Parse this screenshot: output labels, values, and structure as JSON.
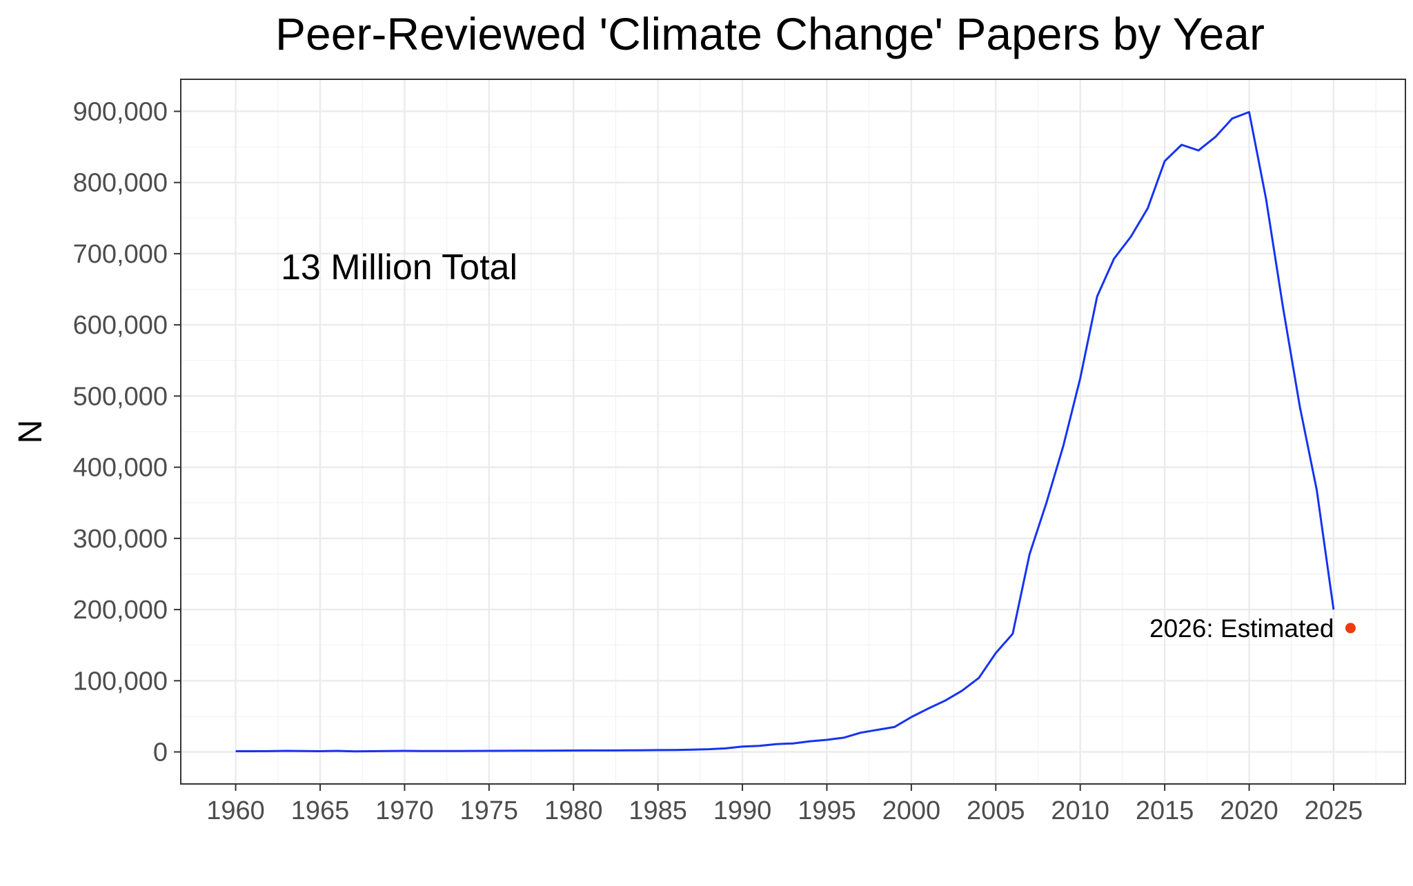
{
  "chart_data": {
    "type": "line",
    "title": "Peer-Reviewed 'Climate Change' Papers by Year",
    "xlabel": "",
    "ylabel": "N",
    "xlim": [
      1956.75,
      2029.25
    ],
    "ylim": [
      -45000,
      945000
    ],
    "x_ticks": [
      1960,
      1965,
      1970,
      1975,
      1980,
      1985,
      1990,
      1995,
      2000,
      2005,
      2010,
      2015,
      2020,
      2025
    ],
    "y_ticks": [
      0,
      100000,
      200000,
      300000,
      400000,
      500000,
      600000,
      700000,
      800000,
      900000
    ],
    "y_tick_labels": [
      "0",
      "100,000",
      "200,000",
      "300,000",
      "400,000",
      "500,000",
      "600,000",
      "700,000",
      "800,000",
      "900,000"
    ],
    "grid": true,
    "line_color": "#1533f0",
    "x": [
      1960,
      1961,
      1962,
      1963,
      1964,
      1965,
      1966,
      1967,
      1968,
      1969,
      1970,
      1971,
      1972,
      1973,
      1974,
      1975,
      1976,
      1977,
      1978,
      1979,
      1980,
      1981,
      1982,
      1983,
      1984,
      1985,
      1986,
      1987,
      1988,
      1989,
      1990,
      1991,
      1992,
      1993,
      1994,
      1995,
      1996,
      1997,
      1998,
      1999,
      2000,
      2001,
      2002,
      2003,
      2004,
      2005,
      2006,
      2007,
      2008,
      2009,
      2010,
      2011,
      2012,
      2013,
      2014,
      2015,
      2016,
      2017,
      2018,
      2019,
      2020,
      2021,
      2022,
      2023,
      2024,
      2025
    ],
    "y": [
      1000,
      1000,
      1100,
      1500,
      1300,
      1000,
      1500,
      800,
      1000,
      1200,
      1500,
      1300,
      1300,
      1200,
      1400,
      1500,
      1600,
      1700,
      1800,
      1900,
      2000,
      2100,
      2100,
      2200,
      2400,
      2600,
      2800,
      3200,
      3800,
      5000,
      7500,
      8500,
      11000,
      12000,
      15000,
      17000,
      20000,
      27000,
      31000,
      35000,
      49000,
      61000,
      72000,
      86000,
      104000,
      139000,
      166000,
      278000,
      350000,
      430000,
      525000,
      640000,
      693000,
      724000,
      764000,
      830000,
      853000,
      845000,
      864000,
      890000,
      899000,
      777000,
      625000,
      485000,
      368000,
      200000
    ],
    "estimate": {
      "x": 2026,
      "y": 174000,
      "label": "2026: Estimated",
      "color": "#f03a0e"
    },
    "annotation": "13 Million Total"
  }
}
